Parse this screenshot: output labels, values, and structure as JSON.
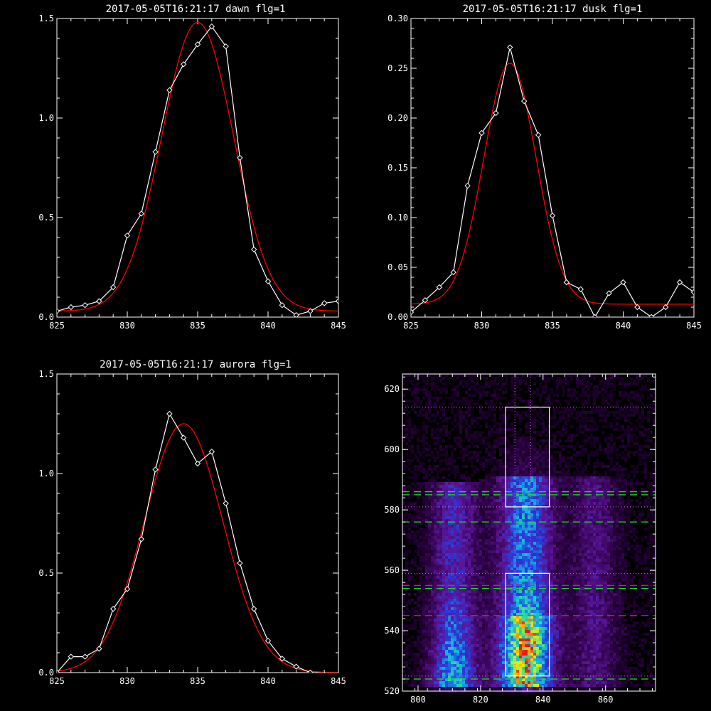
{
  "chart_data": [
    {
      "type": "line",
      "title": "2017-05-05T16:21:17 dawn flg=1",
      "xlim": [
        825,
        845
      ],
      "ylim": [
        0,
        1.5
      ],
      "xticks": [
        "825",
        "830",
        "835",
        "840",
        "845"
      ],
      "yticks": [
        "0.0",
        "0.5",
        "1.0",
        "1.5"
      ],
      "series": [
        {
          "kind": "data",
          "color": "#ffffff",
          "x": [
            825,
            826,
            827,
            828,
            829,
            830,
            831,
            832,
            833,
            834,
            835,
            836,
            837,
            838,
            839,
            840,
            841,
            842,
            843,
            844,
            845
          ],
          "y": [
            0.03,
            0.05,
            0.06,
            0.08,
            0.15,
            0.41,
            0.52,
            0.83,
            1.14,
            1.27,
            1.37,
            1.46,
            1.36,
            0.8,
            0.34,
            0.18,
            0.06,
            0.01,
            0.03,
            0.07,
            0.08
          ]
        },
        {
          "kind": "fit",
          "color": "#ff0000",
          "gauss": {
            "amp": 1.45,
            "center": 835.0,
            "sigma": 2.55,
            "base": 0.03
          }
        }
      ]
    },
    {
      "type": "line",
      "title": "2017-05-05T16:21:17 dusk flg=1",
      "xlim": [
        825,
        845
      ],
      "ylim": [
        0,
        0.3
      ],
      "xticks": [
        "825",
        "830",
        "835",
        "840",
        "845"
      ],
      "yticks": [
        "0.00",
        "0.05",
        "0.10",
        "0.15",
        "0.20",
        "0.25",
        "0.30"
      ],
      "series": [
        {
          "kind": "data",
          "color": "#ffffff",
          "x": [
            825,
            826,
            827,
            828,
            829,
            830,
            831,
            832,
            833,
            834,
            835,
            836,
            837,
            838,
            839,
            840,
            841,
            842,
            843,
            844,
            845
          ],
          "y": [
            0.005,
            0.017,
            0.03,
            0.045,
            0.132,
            0.185,
            0.205,
            0.271,
            0.217,
            0.183,
            0.102,
            0.035,
            0.028,
            0.0,
            0.024,
            0.035,
            0.01,
            0.0,
            0.01,
            0.035,
            0.025
          ]
        },
        {
          "kind": "fit",
          "color": "#ff0000",
          "gauss": {
            "amp": 0.242,
            "center": 832.0,
            "sigma": 1.85,
            "base": 0.013
          }
        }
      ]
    },
    {
      "type": "line",
      "title": "2017-05-05T16:21:17 aurora flg=1",
      "xlim": [
        825,
        845
      ],
      "ylim": [
        0,
        1.5
      ],
      "xticks": [
        "825",
        "830",
        "835",
        "840",
        "845"
      ],
      "yticks": [
        "0.0",
        "0.5",
        "1.0",
        "1.5"
      ],
      "series": [
        {
          "kind": "data",
          "color": "#ffffff",
          "x": [
            825,
            826,
            827,
            828,
            829,
            830,
            831,
            832,
            833,
            834,
            835,
            836,
            837,
            838,
            839,
            840,
            841,
            842,
            843,
            844,
            845
          ],
          "y": [
            0.0,
            0.08,
            0.08,
            0.12,
            0.32,
            0.42,
            0.67,
            1.02,
            1.3,
            1.18,
            1.05,
            1.11,
            0.85,
            0.55,
            0.32,
            0.16,
            0.07,
            0.03,
            0.0,
            -0.01,
            -0.01
          ]
        },
        {
          "kind": "fit",
          "color": "#ff0000",
          "gauss": {
            "amp": 1.25,
            "center": 834.0,
            "sigma": 2.8,
            "base": 0.0
          }
        }
      ]
    },
    {
      "type": "heatmap",
      "title": "",
      "xlim": [
        795,
        876
      ],
      "ylim": [
        520,
        625
      ],
      "xticks": [
        "800",
        "820",
        "840",
        "860"
      ],
      "yticks": [
        "520",
        "540",
        "560",
        "580",
        "600",
        "620"
      ],
      "columns": [
        {
          "center": 811,
          "width": 5
        },
        {
          "center": 834,
          "width": 6
        },
        {
          "center": 856,
          "width": 5
        }
      ],
      "boxes": [
        {
          "x0": 828,
          "x1": 842,
          "y0": 581,
          "y1": 614
        },
        {
          "x0": 828,
          "x1": 842,
          "y0": 525,
          "y1": 559
        }
      ],
      "dotted_h": [
        614,
        581,
        559,
        525
      ],
      "dotted_v": [
        831,
        836
      ],
      "dashed_green": [
        586,
        585,
        576,
        554,
        524
      ],
      "dashed_red": [
        555,
        545
      ]
    }
  ]
}
